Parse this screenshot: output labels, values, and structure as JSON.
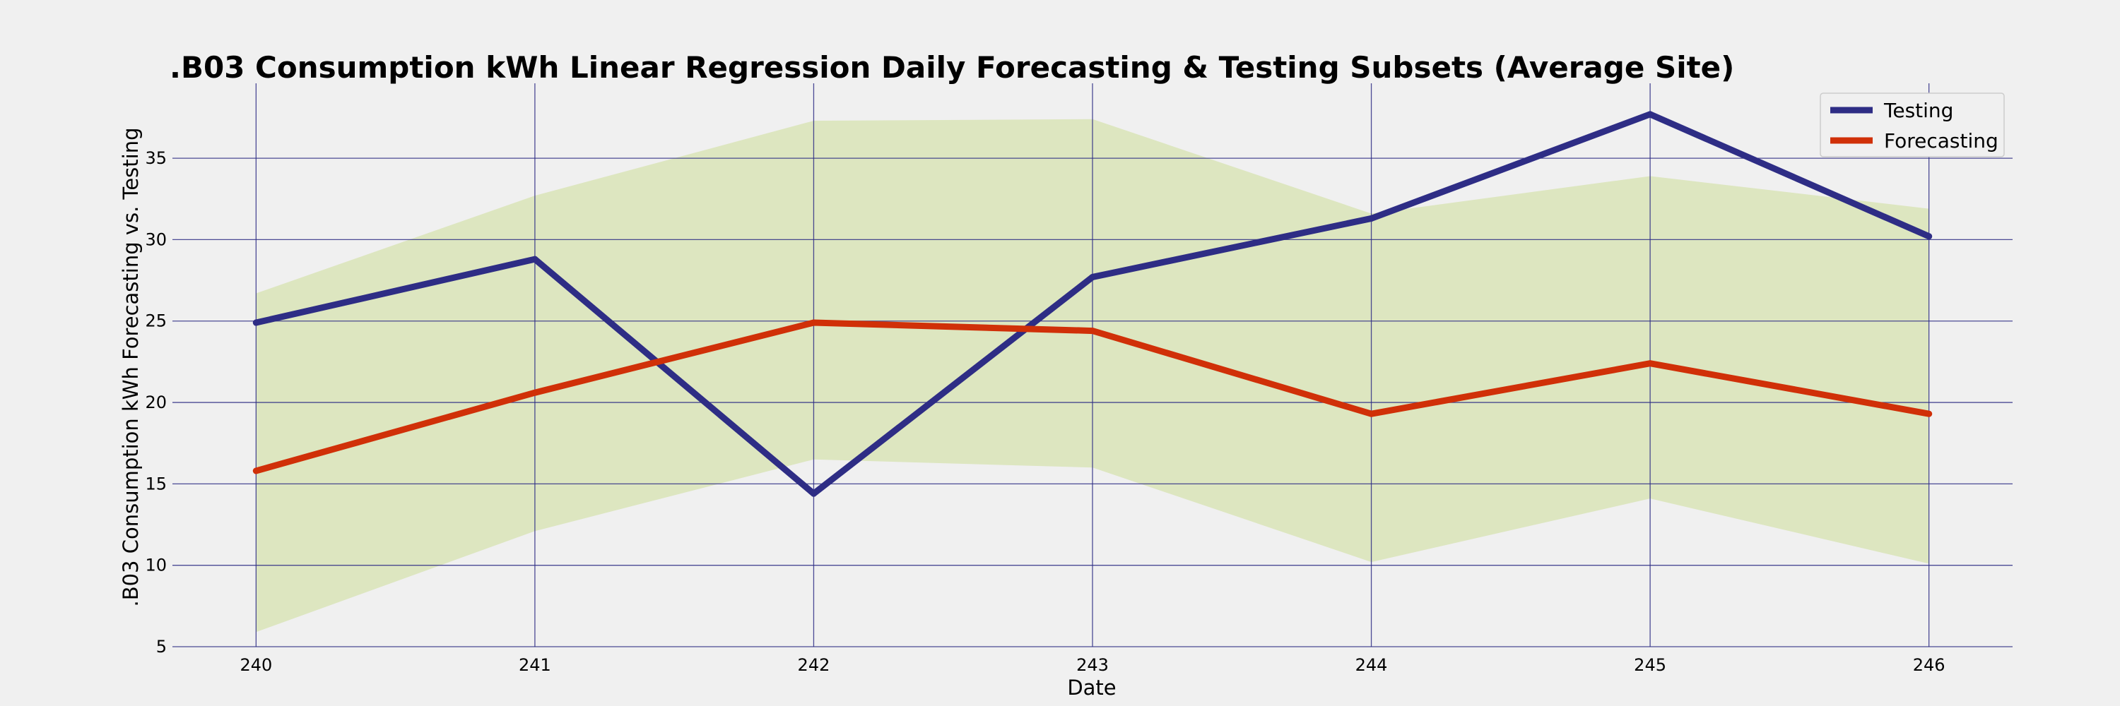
{
  "chart_data": {
    "type": "line",
    "title": ".B03 Consumption kWh Linear Regression Daily Forecasting & Testing Subsets (Average Site)",
    "xlabel": "Date",
    "ylabel": ".B03 Consumption kWh Forecasting vs. Testing",
    "x": [
      240,
      241,
      242,
      243,
      244,
      245,
      246
    ],
    "x_ticks": [
      "240",
      "241",
      "242",
      "243",
      "244",
      "245",
      "246"
    ],
    "y_ticks": [
      "5",
      "10",
      "15",
      "20",
      "25",
      "30",
      "35"
    ],
    "y_tick_values": [
      5,
      10,
      15,
      20,
      25,
      30,
      35
    ],
    "xlim": [
      239.7,
      246.3
    ],
    "ylim": [
      5,
      39.6
    ],
    "grid": true,
    "legend_position": "top-right",
    "series": [
      {
        "name": "Testing",
        "color": "#2e2d85",
        "values": [
          24.9,
          28.8,
          14.4,
          27.7,
          31.3,
          37.7,
          30.2
        ]
      },
      {
        "name": "Forecasting",
        "color": "#d03008",
        "values": [
          15.8,
          20.6,
          24.9,
          24.4,
          19.3,
          22.4,
          19.3
        ]
      }
    ],
    "confidence_band": {
      "color": "#dde6c0",
      "lower": [
        5.9,
        12.1,
        16.5,
        16.0,
        10.2,
        14.1,
        10.1
      ],
      "upper": [
        26.7,
        32.7,
        37.3,
        37.4,
        31.6,
        33.9,
        31.9
      ]
    }
  }
}
